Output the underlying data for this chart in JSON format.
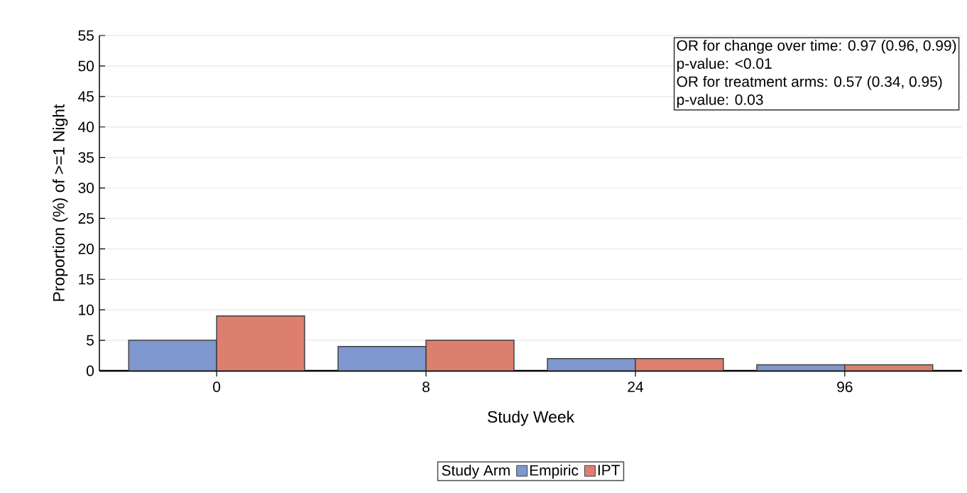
{
  "chart_data": {
    "type": "bar",
    "xlabel": "Study Week",
    "ylabel": "Proportion (%) of >=1 Night",
    "categories": [
      "0",
      "8",
      "24",
      "96"
    ],
    "series": [
      {
        "name": "Empiric",
        "color": "#7f97cf",
        "values": [
          5,
          4,
          2,
          1
        ]
      },
      {
        "name": "IPT",
        "color": "#dd7f6f",
        "values": [
          9,
          5,
          2,
          1
        ]
      }
    ],
    "ylim": [
      0,
      55
    ],
    "yticks": [
      0,
      5,
      10,
      15,
      20,
      25,
      30,
      35,
      40,
      45,
      50,
      55
    ],
    "grid": "y",
    "legend": "bottom",
    "legend_title": "Study Arm",
    "annotations": [
      "OR for change over time: 0.97 (0.96, 0.99)",
      "p-value: <0.01",
      "OR for treatment arms: 0.57 (0.34, 0.95)",
      "p-value: 0.03"
    ]
  }
}
